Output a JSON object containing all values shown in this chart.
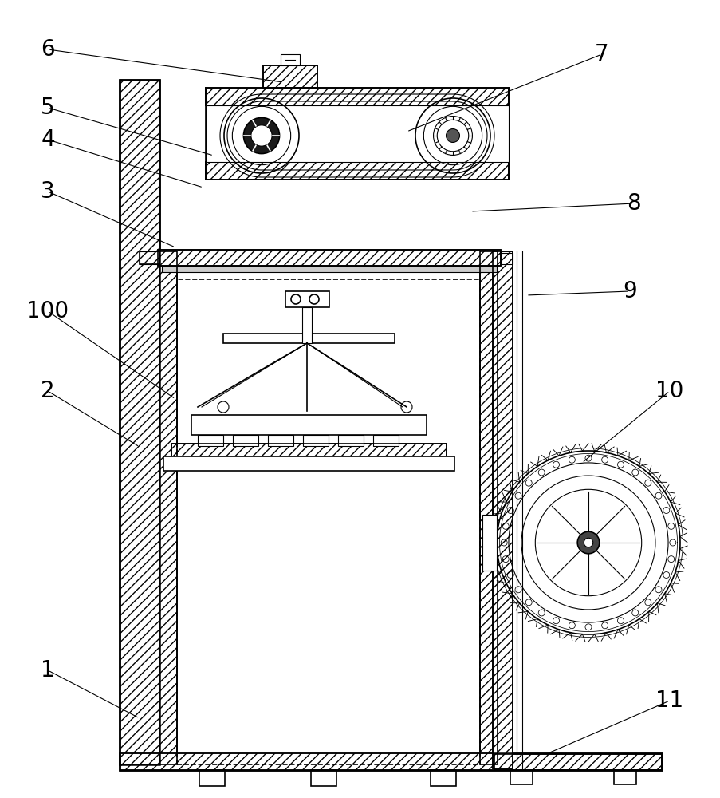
{
  "bg_color": "#ffffff",
  "line_color": "#000000",
  "label_fontsize": 20,
  "annotations": [
    [
      "6",
      60,
      62,
      355,
      103
    ],
    [
      "5",
      60,
      135,
      268,
      195
    ],
    [
      "4",
      60,
      175,
      255,
      235
    ],
    [
      "3",
      60,
      240,
      220,
      310
    ],
    [
      "2",
      60,
      490,
      175,
      560
    ],
    [
      "1",
      60,
      840,
      175,
      900
    ],
    [
      "100",
      60,
      390,
      220,
      500
    ],
    [
      "7",
      755,
      68,
      510,
      165
    ],
    [
      "8",
      795,
      255,
      590,
      265
    ],
    [
      "9",
      790,
      365,
      660,
      370
    ],
    [
      "10",
      840,
      490,
      730,
      580
    ],
    [
      "11",
      840,
      878,
      685,
      945
    ]
  ]
}
